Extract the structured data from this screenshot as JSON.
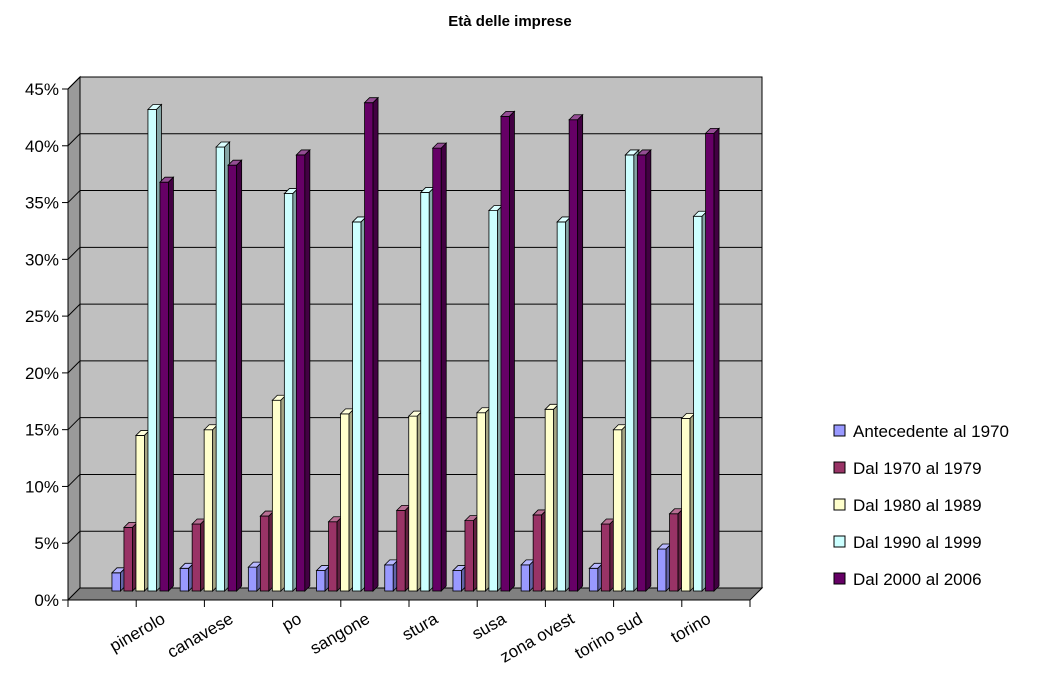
{
  "chart_data": {
    "type": "bar",
    "title": "Età delle imprese",
    "xlabel": "",
    "ylabel": "",
    "ylim": [
      0,
      0.45
    ],
    "yticks": [
      "0%",
      "5%",
      "10%",
      "15%",
      "20%",
      "25%",
      "30%",
      "35%",
      "40%",
      "45%"
    ],
    "grid": true,
    "legend_position": "right",
    "categories": [
      "pinerolo",
      "canavese",
      "po",
      "sangone",
      "stura",
      "susa",
      "zona ovest",
      "torino sud",
      "torino"
    ],
    "series": [
      {
        "name": "Antecedente al 1970",
        "color": "#9999FF",
        "values": [
          0.016,
          0.02,
          0.021,
          0.018,
          0.023,
          0.018,
          0.023,
          0.02,
          0.037
        ]
      },
      {
        "name": "Dal 1970 al 1979",
        "color": "#993366",
        "values": [
          0.056,
          0.059,
          0.066,
          0.061,
          0.071,
          0.062,
          0.067,
          0.059,
          0.068
        ]
      },
      {
        "name": "Dal 1980 al 1989",
        "color": "#FFFFCC",
        "values": [
          0.137,
          0.142,
          0.168,
          0.156,
          0.154,
          0.157,
          0.16,
          0.142,
          0.152
        ]
      },
      {
        "name": "Dal 1990 al 1999",
        "color": "#CCFFFF",
        "values": [
          0.424,
          0.391,
          0.35,
          0.325,
          0.351,
          0.335,
          0.325,
          0.384,
          0.33
        ]
      },
      {
        "name": "Dal 2000 al 2006",
        "color": "#660066",
        "values": [
          0.36,
          0.375,
          0.384,
          0.43,
          0.39,
          0.418,
          0.415,
          0.384,
          0.403
        ]
      }
    ],
    "plot_background": "#C0C0C0",
    "floor_color": "#808080"
  }
}
